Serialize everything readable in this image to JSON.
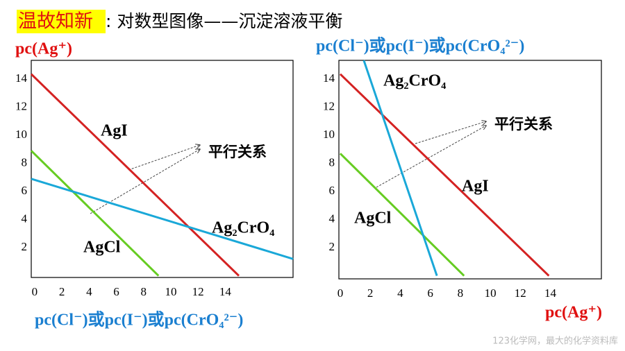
{
  "header": {
    "tag": "温故知新",
    "title": ": 对数型图像——沉淀溶液平衡"
  },
  "footer": {
    "watermark": "123化学网，最大的化学资料库"
  },
  "chart_data": [
    {
      "type": "line",
      "y_label": "pc(Ag⁺)",
      "x_label": "pc(Cl⁻)或pc(I⁻)或pc(CrO₄²⁻)",
      "annotation": "平行关系",
      "xlim": [
        -0.25,
        18.98
      ],
      "ylim": [
        -0.12,
        15.33
      ],
      "xticks": [
        0,
        2,
        4,
        6,
        8,
        10,
        12,
        14
      ],
      "yticks": [
        2,
        4,
        6,
        8,
        10,
        12,
        14
      ],
      "series": [
        {
          "name": "AgI",
          "color": "#d42222",
          "x": [
            -0.25,
            15
          ],
          "values": [
            14.35,
            0
          ]
        },
        {
          "name": "AgCl",
          "color": "#66cc22",
          "x": [
            -0.25,
            9.1
          ],
          "values": [
            8.9,
            0
          ]
        },
        {
          "name": "Ag₂CrO₄",
          "color": "#1aa8d8",
          "x": [
            -0.25,
            18.98
          ],
          "values": [
            6.9,
            1.2
          ]
        }
      ]
    },
    {
      "type": "line",
      "y_label": "pc(Cl⁻)或pc(I⁻)或pc(CrO₄²⁻)",
      "x_label": "pc(Ag⁺)",
      "annotation": "平行关系",
      "xlim": [
        -0.09,
        17.4
      ],
      "ylim": [
        -0.22,
        15.33
      ],
      "xticks": [
        0,
        2,
        4,
        6,
        8,
        10,
        12,
        14
      ],
      "yticks": [
        2,
        4,
        6,
        8,
        10,
        12,
        14
      ],
      "series": [
        {
          "name": "AgI",
          "color": "#d42222",
          "x": [
            0,
            13.9
          ],
          "values": [
            14.35,
            0
          ]
        },
        {
          "name": "AgCl",
          "color": "#66cc22",
          "x": [
            0,
            8.25
          ],
          "values": [
            8.7,
            0
          ]
        },
        {
          "name": "Ag₂CrO₄",
          "color": "#1aa8d8",
          "x": [
            1.57,
            6.44
          ],
          "values": [
            15.33,
            0
          ]
        }
      ]
    }
  ]
}
